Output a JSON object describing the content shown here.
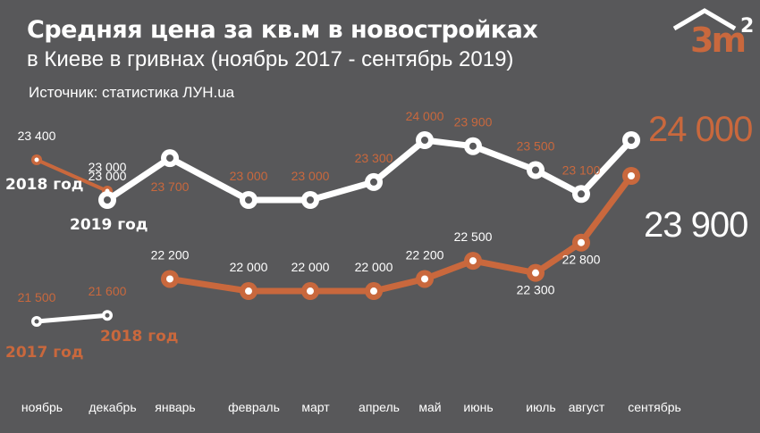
{
  "title": "Средняя цена за кв.м в новостройках",
  "subtitle": "в Киеве в гривнах (ноябрь 2017 - сентябрь 2019)",
  "source": "Источник: статистика ЛУН.ua",
  "logo": {
    "text": "3m",
    "superscript": "2"
  },
  "colors": {
    "background": "#58585a",
    "accent": "#c9683d",
    "white": "#ffffff"
  },
  "chart_data": {
    "type": "line",
    "categories": [
      "ноябрь",
      "декабрь",
      "январь",
      "февраль",
      "март",
      "апрель",
      "май",
      "июнь",
      "июль",
      "август",
      "сентябрь"
    ],
    "series": [
      {
        "name": "2017 год",
        "color": "#ffffff",
        "x": [
          "ноябрь",
          "декабрь"
        ],
        "values": [
          21500,
          21600
        ],
        "labels": [
          "21 500",
          "21 600"
        ]
      },
      {
        "name": "2018 год",
        "color": "#c9683d",
        "x": [
          "ноябрь",
          "декабрь",
          "январь",
          "февраль",
          "март",
          "апрель",
          "май",
          "июнь",
          "июль",
          "август",
          "сентябрь"
        ],
        "values": [
          23400,
          23000,
          22200,
          22000,
          22000,
          22000,
          22200,
          22500,
          22300,
          22800,
          23900
        ],
        "labels": [
          "23 400",
          "23 000",
          "22 200",
          "22 000",
          "22 000",
          "22 000",
          "22 200",
          "22 500",
          "22 300",
          "22 800",
          "23 900"
        ]
      },
      {
        "name": "2019 год",
        "color": "#ffffff",
        "x": [
          "декабрь",
          "январь",
          "февраль",
          "март",
          "апрель",
          "май",
          "июнь",
          "июль",
          "август",
          "сентябрь"
        ],
        "values": [
          23000,
          23700,
          23000,
          23000,
          23300,
          24000,
          23900,
          23500,
          23100,
          24000
        ],
        "labels": [
          "23 000",
          "23 700",
          "23 000",
          "23 000",
          "23 300",
          "24 000",
          "23 900",
          "23 500",
          "23 100",
          "24 000"
        ]
      }
    ],
    "final_values": {
      "top": "24 000",
      "bottom": "23 900"
    },
    "grid": false,
    "legend": "inline"
  }
}
